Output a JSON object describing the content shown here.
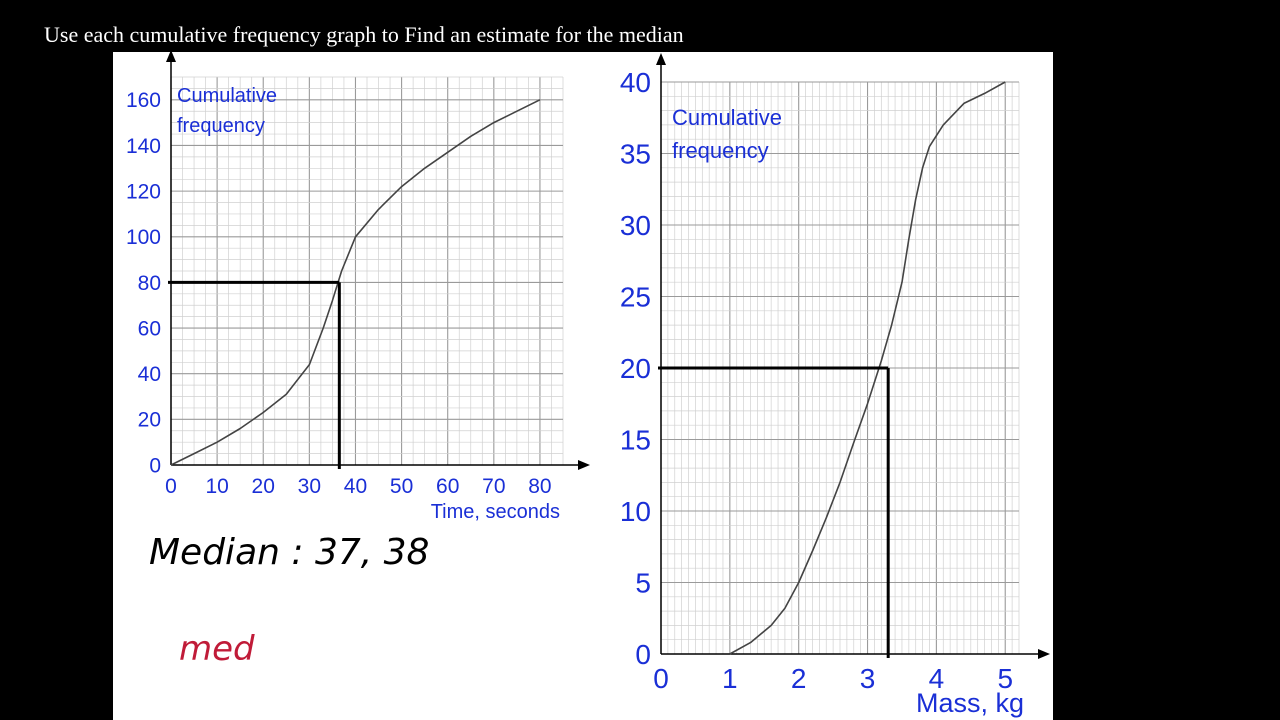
{
  "question": "Use each cumulative frequency graph to Find an estimate for the median",
  "chart_data": [
    {
      "type": "line",
      "ylabel": "Cumulative frequency",
      "xlabel": "Time, seconds",
      "xlim": [
        0,
        85
      ],
      "ylim": [
        0,
        170
      ],
      "x_ticks": [
        0,
        10,
        20,
        30,
        40,
        50,
        60,
        70,
        80
      ],
      "y_ticks": [
        0,
        20,
        40,
        60,
        80,
        100,
        120,
        140,
        160
      ],
      "grid": true,
      "series": [
        {
          "x": [
            0,
            5,
            10,
            15,
            20,
            25,
            30,
            33,
            35,
            37,
            40,
            45,
            50,
            55,
            60,
            65,
            70,
            75,
            80
          ],
          "y": [
            0,
            5,
            10,
            16,
            23,
            31,
            44,
            60,
            72,
            85,
            100,
            112,
            122,
            130,
            137,
            144,
            150,
            155,
            160
          ]
        }
      ],
      "guide": {
        "y": 80,
        "x": 36.5
      }
    },
    {
      "type": "line",
      "ylabel": "Cumulative frequency",
      "xlabel": "Mass, kg",
      "xlim": [
        0,
        5.2
      ],
      "ylim": [
        0,
        40
      ],
      "x_ticks": [
        0,
        1,
        2,
        3,
        4,
        5
      ],
      "y_ticks": [
        0,
        5,
        10,
        15,
        20,
        25,
        30,
        35,
        40
      ],
      "grid": true,
      "series": [
        {
          "x": [
            1,
            1.3,
            1.6,
            1.8,
            2.0,
            2.2,
            2.4,
            2.6,
            2.8,
            3.0,
            3.2,
            3.35,
            3.5,
            3.6,
            3.7,
            3.8,
            3.9,
            4.1,
            4.4,
            4.7,
            5.0
          ],
          "y": [
            0,
            0.8,
            2,
            3.2,
            5,
            7.2,
            9.5,
            12,
            14.8,
            17.5,
            20.5,
            23,
            26,
            29,
            31.8,
            34,
            35.5,
            37,
            38.5,
            39.2,
            40
          ]
        }
      ],
      "guide": {
        "y": 20,
        "x": 3.3
      }
    }
  ],
  "annotations": {
    "median_note": "Median : 37, 38",
    "partial_note": "med"
  }
}
